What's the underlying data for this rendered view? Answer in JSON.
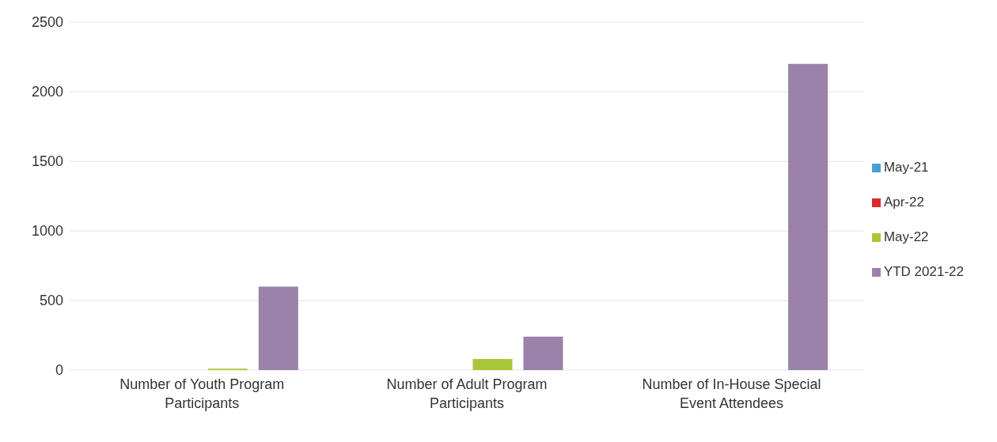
{
  "chart_data": {
    "type": "bar",
    "categories": [
      "Number of Youth Program Participants",
      "Number of Adult Program Participants",
      "Number of In-House Special Event Attendees"
    ],
    "series": [
      {
        "name": "May-21",
        "color": "#4a9fd6",
        "values": [
          0,
          0,
          0
        ]
      },
      {
        "name": "Apr-22",
        "color": "#d62a2a",
        "values": [
          0,
          0,
          0
        ]
      },
      {
        "name": "May-22",
        "color": "#a8c838",
        "values": [
          10,
          80,
          0
        ]
      },
      {
        "name": "YTD 2021-22",
        "color": "#9a82ab",
        "values": [
          600,
          240,
          2200
        ]
      }
    ],
    "ylim": [
      0,
      2500
    ],
    "yticks": [
      0,
      500,
      1000,
      1500,
      2000,
      2500
    ],
    "grid": "y",
    "legend": "right"
  }
}
